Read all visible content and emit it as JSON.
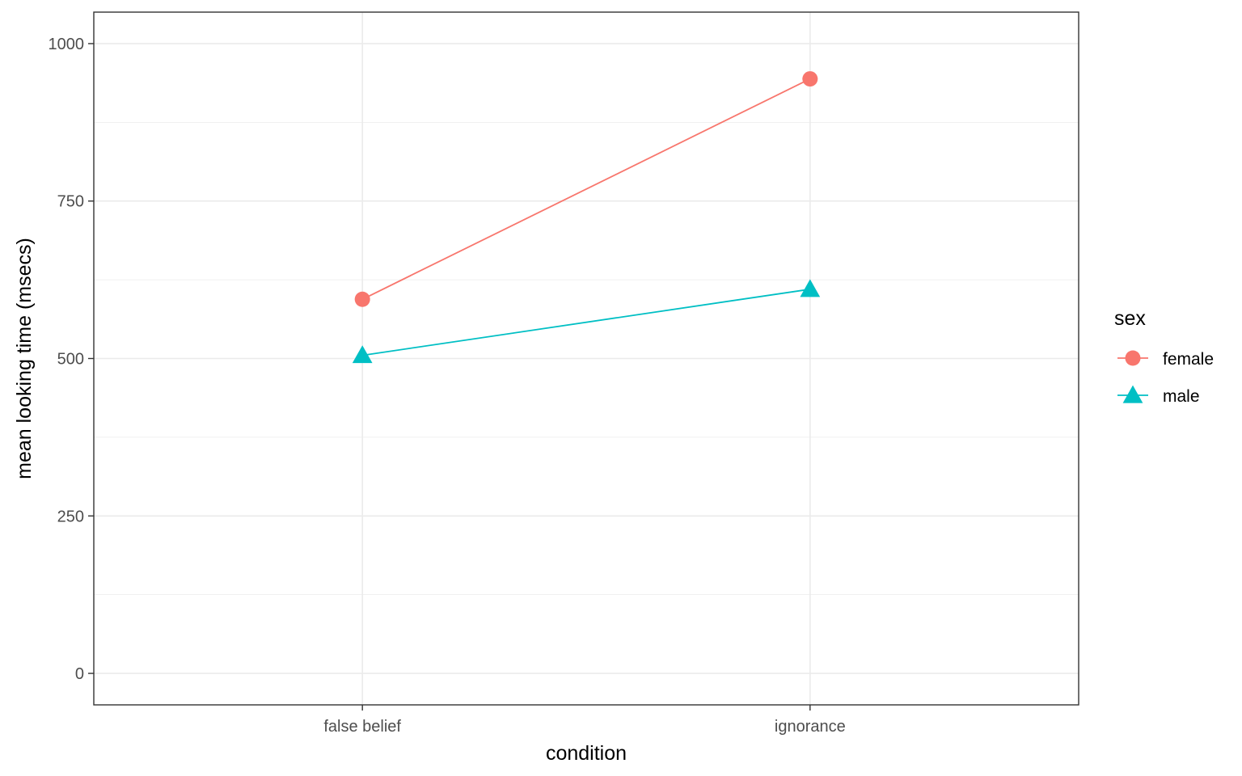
{
  "chart_data": {
    "type": "line",
    "title": "",
    "xlabel": "condition",
    "ylabel": "mean looking time (msecs)",
    "categories": [
      "false belief",
      "ignorance"
    ],
    "ylim": [
      -50,
      1050
    ],
    "yticks": [
      0,
      250,
      500,
      750,
      1000
    ],
    "grid": true,
    "legend": {
      "title": "sex",
      "placement": "right"
    },
    "series": [
      {
        "name": "female",
        "color": "#F8766D",
        "marker": "circle",
        "values": [
          594,
          944
        ]
      },
      {
        "name": "male",
        "color": "#00BFC4",
        "marker": "triangle",
        "values": [
          505,
          610
        ]
      }
    ]
  }
}
